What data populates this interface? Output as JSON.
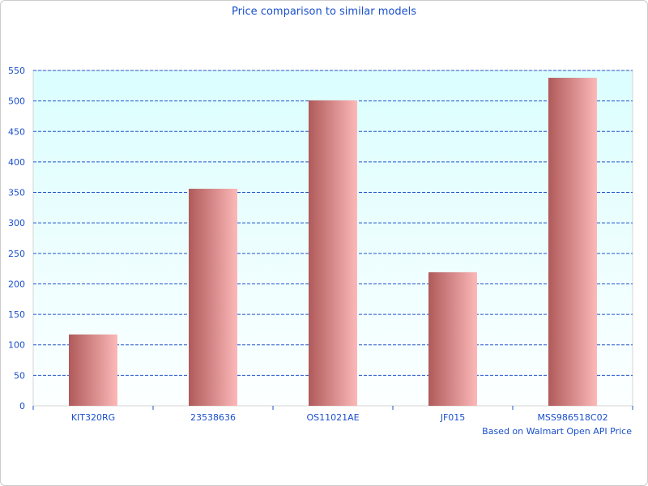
{
  "chart_data": {
    "type": "bar",
    "title": "Price comparison to similar models",
    "subtitle": "Based on Walmart Open API Price",
    "categories": [
      "KIT320RG",
      "23538636",
      "OS11021AE",
      "JF015",
      "MSS986518C02"
    ],
    "values": [
      117,
      356,
      501,
      219,
      538
    ],
    "ylim": [
      0,
      550
    ],
    "yticks": [
      0,
      50,
      100,
      150,
      200,
      250,
      300,
      350,
      400,
      450,
      500,
      550
    ],
    "grid": true,
    "colors": {
      "bar_dark": "#b05a5a",
      "bar_light": "#fcb8b8",
      "grid": "#2255cc",
      "text": "#1a4fcc",
      "plot_top": "#dbfefe",
      "plot_bottom": "#fcffff"
    }
  }
}
